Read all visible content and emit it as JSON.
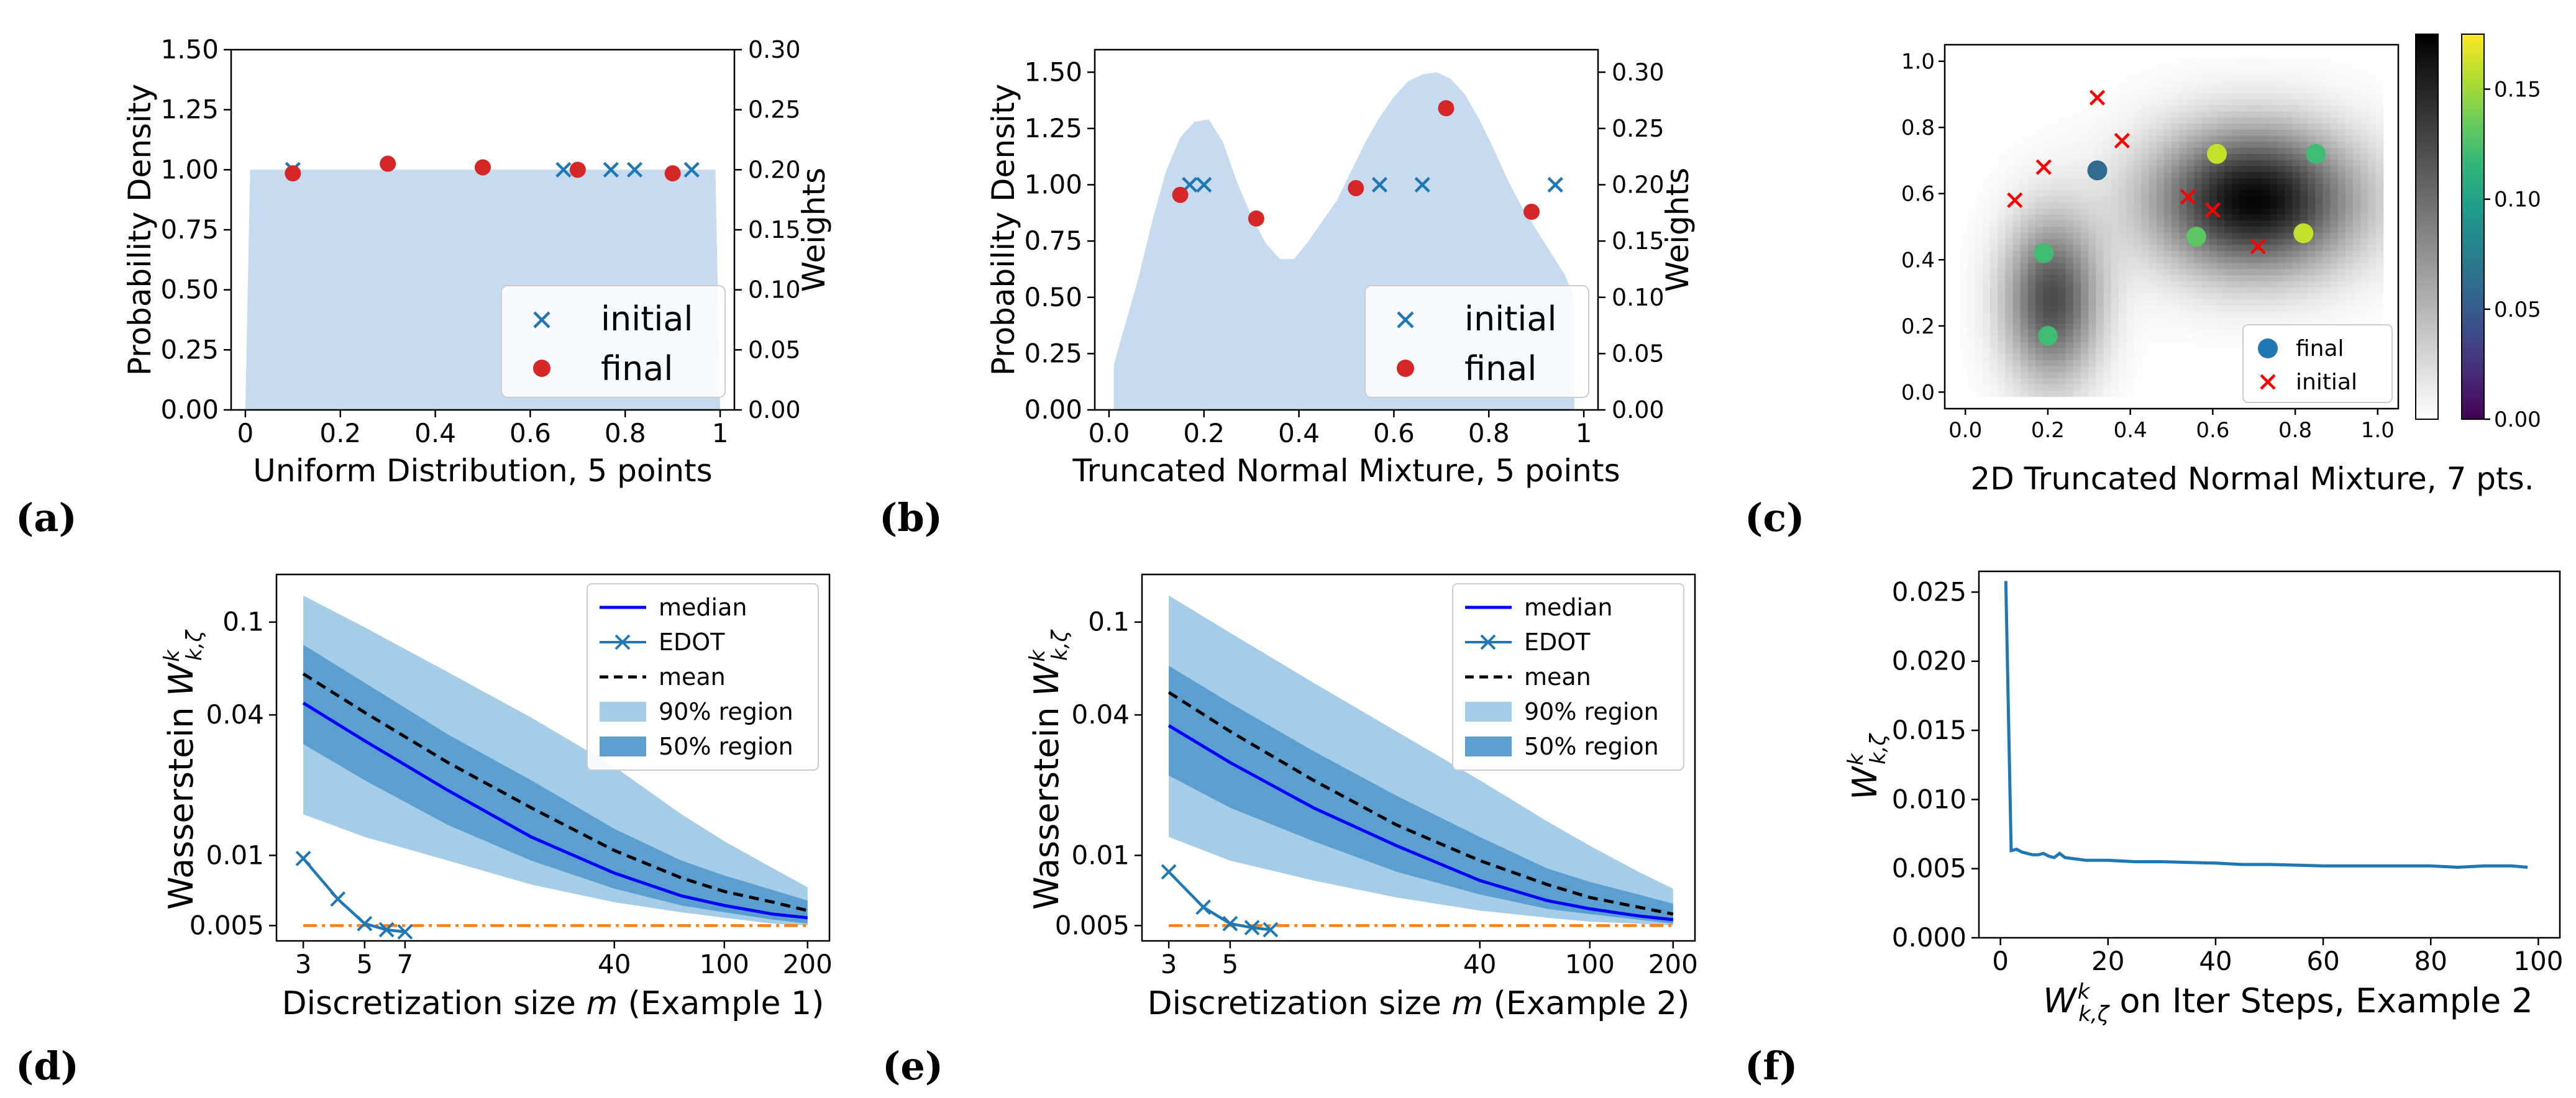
{
  "colors": {
    "fill_light": "#c6dbef",
    "band90": "#a6cde8",
    "band50": "#5b9fd0",
    "median": "#0000ff",
    "edot": "#1f77b4",
    "target": "#ff7f0e",
    "final_red": "#d62728",
    "initial_blue": "#1f77b4"
  },
  "panels": [
    {
      "id": "a",
      "letter": "(a)",
      "xlabel": "Uniform Distribution, 5 points"
    },
    {
      "id": "b",
      "letter": "(b)",
      "xlabel": "Truncated Normal Mixture, 5 points"
    },
    {
      "id": "c",
      "letter": "(c)",
      "xlabel": "2D Truncated Normal Mixture, 7 pts."
    },
    {
      "id": "d",
      "letter": "(d)",
      "xlabel": "Discretization size m (Example 1)"
    },
    {
      "id": "e",
      "letter": "(e)",
      "xlabel": "Discretization size m (Example 2)"
    },
    {
      "id": "f",
      "letter": "(f)",
      "xlabel": "W on Iter Steps, Example 2"
    }
  ],
  "chart_data": [
    {
      "panel": "a",
      "type": "scatter",
      "xlabel": "Uniform Distribution, 5 points",
      "ylabel": "Probability Density",
      "y2label": "Weights",
      "xlim": [
        0,
        1
      ],
      "ylim": [
        0,
        1.5
      ],
      "y2lim": [
        0,
        0.3
      ],
      "xticks": [
        "0",
        "0.2",
        "0.4",
        "0.6",
        "0.8",
        "1"
      ],
      "yticks": [
        "0.00",
        "0.25",
        "0.50",
        "0.75",
        "1.00",
        "1.25",
        "1.50"
      ],
      "y2ticks": [
        "0.00",
        "0.05",
        "0.10",
        "0.15",
        "0.20",
        "0.25",
        "0.30"
      ],
      "density": {
        "x": [
          0,
          0.01,
          0.99,
          1
        ],
        "y": [
          0,
          1.0,
          1.0,
          0
        ]
      },
      "legend": {
        "position": "lower-right",
        "entries": [
          "initial",
          "final"
        ]
      },
      "series": [
        {
          "name": "initial",
          "marker": "x",
          "x": [
            0.1,
            0.67,
            0.77,
            0.82,
            0.94
          ],
          "y": [
            1.0,
            1.0,
            1.0,
            1.0,
            1.0
          ]
        },
        {
          "name": "final",
          "marker": "o",
          "x": [
            0.1,
            0.3,
            0.5,
            0.7,
            0.9
          ],
          "y": [
            0.197,
            0.205,
            0.202,
            0.2,
            0.197
          ]
        }
      ]
    },
    {
      "panel": "b",
      "type": "scatter",
      "xlabel": "Truncated Normal Mixture, 5 points",
      "ylabel": "Probability Density",
      "y2label": "Weights",
      "xlim": [
        0,
        1
      ],
      "ylim": [
        0,
        1.6
      ],
      "y2lim": [
        0,
        0.32
      ],
      "xticks": [
        "0.0",
        "0.2",
        "0.4",
        "0.6",
        "0.8",
        "1"
      ],
      "yticks": [
        "0.00",
        "0.25",
        "0.50",
        "0.75",
        "1.00",
        "1.25",
        "1.50"
      ],
      "y2ticks": [
        "0.00",
        "0.05",
        "0.10",
        "0.15",
        "0.20",
        "0.25",
        "0.30"
      ],
      "density": {
        "x": [
          0.01,
          0.03,
          0.06,
          0.09,
          0.12,
          0.15,
          0.18,
          0.21,
          0.24,
          0.27,
          0.3,
          0.33,
          0.36,
          0.39,
          0.42,
          0.45,
          0.48,
          0.51,
          0.54,
          0.57,
          0.6,
          0.63,
          0.66,
          0.69,
          0.72,
          0.75,
          0.78,
          0.81,
          0.84,
          0.87,
          0.9,
          0.93,
          0.96,
          0.98
        ],
        "y": [
          0.2,
          0.35,
          0.57,
          0.83,
          1.06,
          1.21,
          1.28,
          1.29,
          1.19,
          1.01,
          0.86,
          0.74,
          0.67,
          0.67,
          0.75,
          0.84,
          0.93,
          1.06,
          1.19,
          1.3,
          1.39,
          1.46,
          1.49,
          1.5,
          1.47,
          1.4,
          1.29,
          1.16,
          1.02,
          0.9,
          0.8,
          0.7,
          0.6,
          0.5
        ]
      },
      "legend": {
        "position": "lower-right",
        "entries": [
          "initial",
          "final"
        ]
      },
      "series": [
        {
          "name": "initial",
          "marker": "x",
          "x": [
            0.17,
            0.2,
            0.57,
            0.66,
            0.94
          ],
          "y": [
            1.0,
            1.0,
            1.0,
            1.0,
            1.0
          ]
        },
        {
          "name": "final",
          "marker": "o",
          "x": [
            0.15,
            0.31,
            0.52,
            0.71,
            0.89
          ],
          "y": [
            0.191,
            0.17,
            0.197,
            0.268,
            0.176
          ]
        }
      ]
    },
    {
      "panel": "c",
      "type": "heatmap",
      "xlabel": "2D Truncated Normal Mixture, 7 pts.",
      "xlim": [
        -0.05,
        1.05
      ],
      "ylim": [
        -0.05,
        1.05
      ],
      "xticks": [
        "0.0",
        "0.2",
        "0.4",
        "0.6",
        "0.8",
        "1.0"
      ],
      "yticks": [
        "0.0",
        "0.2",
        "0.4",
        "0.6",
        "0.8",
        "1.0"
      ],
      "colorbar_gray": {
        "cmap": "gray_r"
      },
      "colorbar_weights": {
        "cmap": "viridis",
        "range": [
          0,
          0.175
        ],
        "ticks": [
          "0.00",
          "0.05",
          "0.10",
          "0.15"
        ]
      },
      "legend": {
        "position": "lower-right",
        "entries": [
          "final",
          "initial"
        ]
      },
      "density_components": [
        {
          "cx": 0.7,
          "cy": 0.58,
          "sx": 0.17,
          "sy": 0.15,
          "w": 1.0
        },
        {
          "cx": 0.21,
          "cy": 0.28,
          "sx": 0.08,
          "sy": 0.17,
          "w": 0.72
        }
      ],
      "series": [
        {
          "name": "final",
          "marker": "o",
          "points": [
            {
              "x": 0.32,
              "y": 0.67,
              "w": 0.06
            },
            {
              "x": 0.61,
              "y": 0.72,
              "w": 0.16
            },
            {
              "x": 0.85,
              "y": 0.72,
              "w": 0.12
            },
            {
              "x": 0.82,
              "y": 0.48,
              "w": 0.16
            },
            {
              "x": 0.56,
              "y": 0.47,
              "w": 0.13
            },
            {
              "x": 0.19,
              "y": 0.42,
              "w": 0.12
            },
            {
              "x": 0.2,
              "y": 0.17,
              "w": 0.12
            }
          ]
        },
        {
          "name": "initial",
          "marker": "x",
          "x": [
            0.12,
            0.19,
            0.32,
            0.38,
            0.54,
            0.6,
            0.71
          ],
          "y": [
            0.58,
            0.68,
            0.89,
            0.76,
            0.59,
            0.55,
            0.44
          ]
        }
      ]
    },
    {
      "panel": "d",
      "type": "line",
      "xlabel": "Discretization size m (Example 1)",
      "ylabel": "Wasserstein W",
      "xscale": "log",
      "yscale": "log",
      "xlim": [
        2.4,
        240
      ],
      "ylim": [
        0.0043,
        0.16
      ],
      "xticks": [
        3,
        5,
        7,
        40,
        100,
        200
      ],
      "yticks": [
        0.005,
        0.01,
        0.04,
        0.1
      ],
      "ytick_labels": [
        "0.005",
        "0.01",
        "0.04",
        "0.1"
      ],
      "legend": {
        "position": "top-right",
        "entries": [
          "median",
          "EDOT",
          "mean",
          "90% region",
          "50% region"
        ]
      },
      "m": [
        3,
        5,
        10,
        20,
        40,
        70,
        100,
        150,
        200
      ],
      "median": [
        0.045,
        0.031,
        0.019,
        0.012,
        0.0084,
        0.0067,
        0.0061,
        0.0056,
        0.0054
      ],
      "mean": [
        0.06,
        0.041,
        0.025,
        0.016,
        0.0105,
        0.008,
        0.007,
        0.0063,
        0.0058
      ],
      "p50_low": [
        0.03,
        0.021,
        0.0135,
        0.0095,
        0.0072,
        0.0061,
        0.0057,
        0.0053,
        0.0051
      ],
      "p50_high": [
        0.08,
        0.055,
        0.033,
        0.021,
        0.013,
        0.0095,
        0.0082,
        0.0071,
        0.0064
      ],
      "p90_low": [
        0.015,
        0.012,
        0.0095,
        0.0075,
        0.0063,
        0.0057,
        0.0054,
        0.0051,
        0.005
      ],
      "p90_high": [
        0.13,
        0.095,
        0.061,
        0.039,
        0.024,
        0.015,
        0.0115,
        0.0088,
        0.0073
      ],
      "edot": {
        "x": [
          3,
          4,
          5,
          6,
          7
        ],
        "y": [
          0.0097,
          0.0065,
          0.0051,
          0.0048,
          0.0047
        ]
      },
      "target_line": 0.005
    },
    {
      "panel": "e",
      "type": "line",
      "xlabel": "Discretization size m (Example 2)",
      "ylabel": "Wasserstein W",
      "xscale": "log",
      "yscale": "log",
      "xlim": [
        2.4,
        240
      ],
      "ylim": [
        0.0043,
        0.16
      ],
      "xticks": [
        3,
        5,
        40,
        100,
        200
      ],
      "yticks": [
        0.005,
        0.01,
        0.04,
        0.1
      ],
      "ytick_labels": [
        "0.005",
        "0.01",
        "0.04",
        "0.1"
      ],
      "legend": {
        "position": "top-right",
        "entries": [
          "median",
          "EDOT",
          "mean",
          "90% region",
          "50% region"
        ]
      },
      "m": [
        3,
        5,
        10,
        20,
        40,
        70,
        100,
        150,
        200
      ],
      "median": [
        0.036,
        0.025,
        0.016,
        0.011,
        0.0078,
        0.0064,
        0.0059,
        0.0055,
        0.0053
      ],
      "mean": [
        0.05,
        0.034,
        0.021,
        0.0135,
        0.0095,
        0.0075,
        0.0066,
        0.006,
        0.0056
      ],
      "p50_low": [
        0.022,
        0.016,
        0.0115,
        0.0085,
        0.0068,
        0.0059,
        0.0056,
        0.0053,
        0.0051
      ],
      "p50_high": [
        0.065,
        0.045,
        0.028,
        0.018,
        0.012,
        0.0088,
        0.0077,
        0.0068,
        0.0062
      ],
      "p90_low": [
        0.012,
        0.0095,
        0.0078,
        0.0066,
        0.0058,
        0.0054,
        0.0052,
        0.0051,
        0.005
      ],
      "p90_high": [
        0.13,
        0.09,
        0.055,
        0.034,
        0.021,
        0.014,
        0.011,
        0.0085,
        0.0072
      ],
      "edot": {
        "x": [
          3,
          4,
          5,
          6,
          7
        ],
        "y": [
          0.0085,
          0.006,
          0.0051,
          0.0049,
          0.0048
        ]
      },
      "target_line": 0.005
    },
    {
      "panel": "f",
      "type": "line",
      "xlabel": "W on Iter Steps, Example 2",
      "ylabel": "W",
      "xlim": [
        -4,
        104
      ],
      "ylim": [
        0,
        0.0265
      ],
      "xticks": [
        0,
        20,
        40,
        60,
        80,
        100
      ],
      "yticks": [
        0.0,
        0.005,
        0.01,
        0.015,
        0.02,
        0.025
      ],
      "ytick_labels": [
        "0.000",
        "0.005",
        "0.010",
        "0.015",
        "0.020",
        "0.025"
      ],
      "series": [
        {
          "name": "",
          "x": [
            1,
            2,
            3,
            4,
            5,
            6,
            7,
            8,
            9,
            10,
            11,
            12,
            14,
            16,
            20,
            25,
            30,
            40,
            45,
            50,
            60,
            70,
            80,
            85,
            90,
            95,
            98
          ],
          "y": [
            0.0258,
            0.0063,
            0.0064,
            0.0062,
            0.0061,
            0.006,
            0.006,
            0.0061,
            0.0059,
            0.0058,
            0.0061,
            0.0058,
            0.0057,
            0.0056,
            0.0056,
            0.0055,
            0.0055,
            0.0054,
            0.0053,
            0.0053,
            0.0052,
            0.0052,
            0.0052,
            0.0051,
            0.0052,
            0.0052,
            0.0051
          ]
        }
      ]
    }
  ]
}
